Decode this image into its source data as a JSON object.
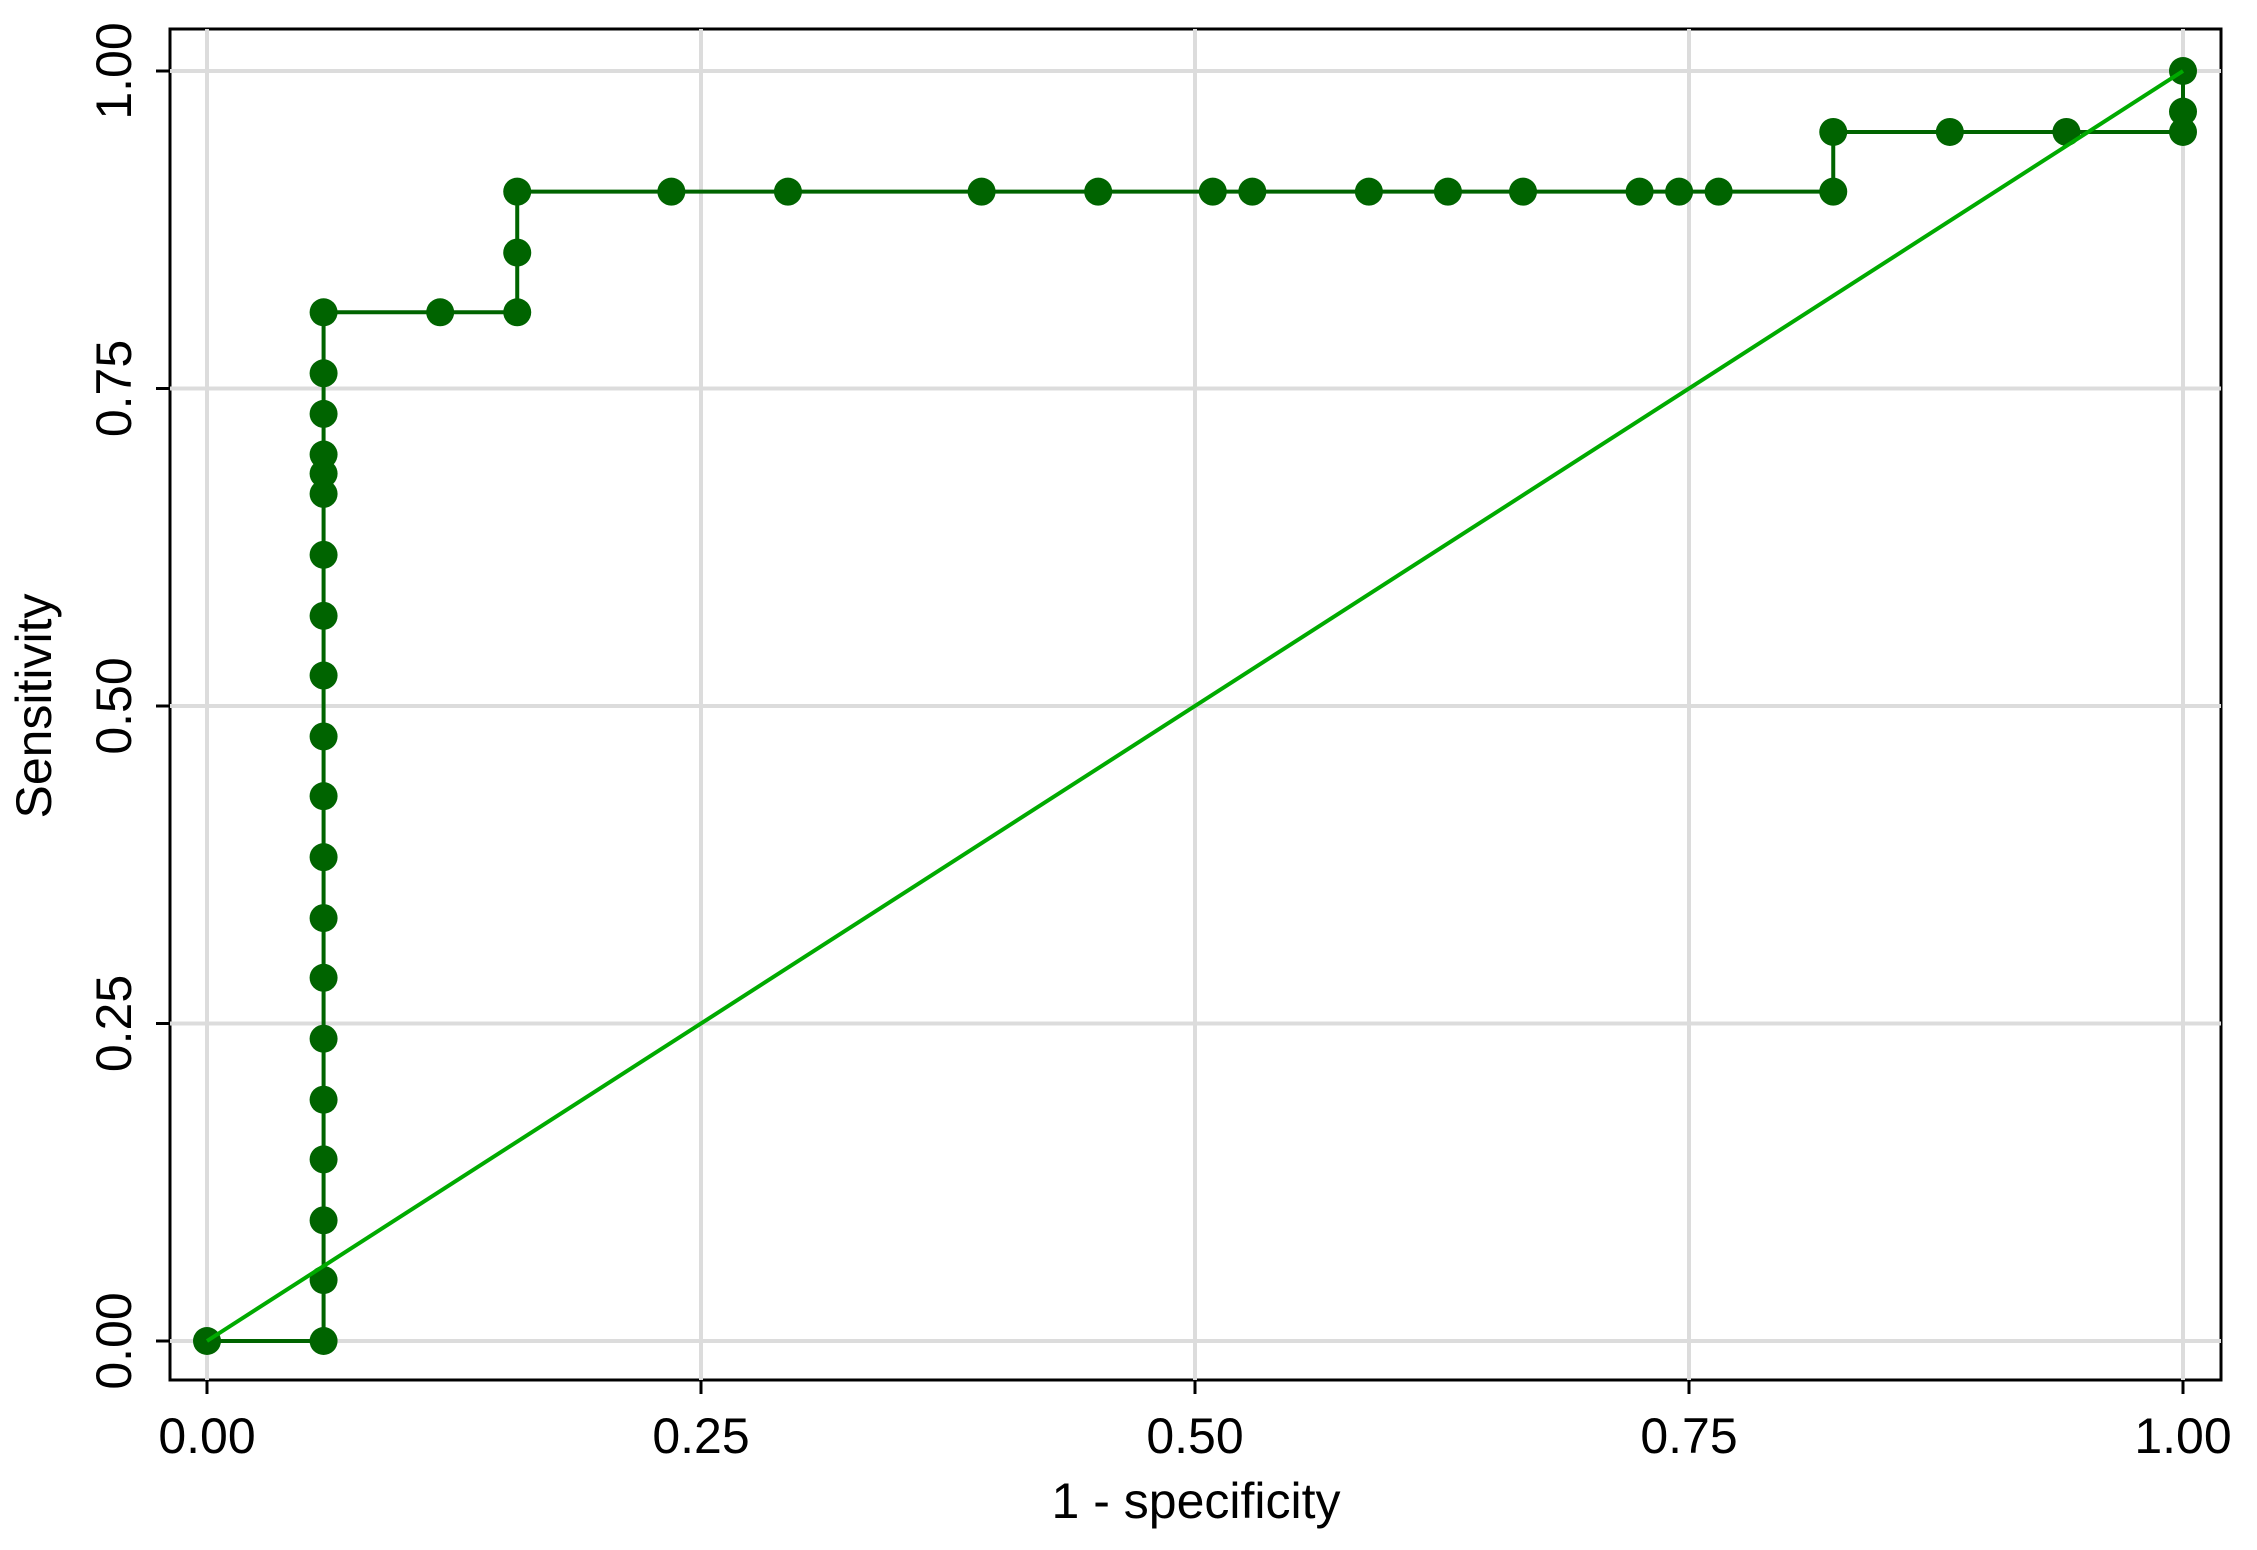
{
  "chart_data": {
    "type": "line",
    "xlabel": "1 - specificity",
    "ylabel": "Sensitivity",
    "xlim": [
      0,
      1
    ],
    "ylim": [
      0,
      1
    ],
    "xticks": [
      {
        "value": 0,
        "label": "0.00"
      },
      {
        "value": 0.25,
        "label": "0.25"
      },
      {
        "value": 0.5,
        "label": "0.50"
      },
      {
        "value": 0.75,
        "label": "0.75"
      },
      {
        "value": 1,
        "label": "1.00"
      }
    ],
    "yticks": [
      {
        "value": 0,
        "label": "0.00"
      },
      {
        "value": 0.25,
        "label": "0.25"
      },
      {
        "value": 0.5,
        "label": "0.50"
      },
      {
        "value": 0.75,
        "label": "0.75"
      },
      {
        "value": 1,
        "label": "1.00"
      }
    ],
    "grid": true,
    "series": [
      {
        "color": "#006400",
        "markers": true,
        "x": [
          0,
          0.059,
          0.059,
          0.059,
          0.059,
          0.059,
          0.059,
          0.059,
          0.059,
          0.059,
          0.059,
          0.059,
          0.059,
          0.059,
          0.059,
          0.059,
          0.059,
          0.059,
          0.059,
          0.059,
          0.059,
          0.118,
          0.157,
          0.157,
          0.157,
          0.235,
          0.294,
          0.392,
          0.451,
          0.509,
          0.529,
          0.588,
          0.628,
          0.666,
          0.725,
          0.745,
          0.765,
          0.823,
          0.823,
          0.882,
          0.941,
          1,
          1,
          1
        ],
        "values": [
          0,
          0,
          0.048,
          0.095,
          0.143,
          0.19,
          0.238,
          0.286,
          0.333,
          0.381,
          0.429,
          0.476,
          0.524,
          0.571,
          0.619,
          0.667,
          0.683,
          0.698,
          0.73,
          0.762,
          0.81,
          0.81,
          0.81,
          0.857,
          0.905,
          0.905,
          0.905,
          0.905,
          0.905,
          0.905,
          0.905,
          0.905,
          0.905,
          0.905,
          0.905,
          0.905,
          0.905,
          0.905,
          0.952,
          0.952,
          0.952,
          0.952,
          0.968,
          1
        ]
      },
      {
        "color": "#00aa00",
        "markers": false,
        "x": [
          0,
          1
        ],
        "values": [
          0,
          1
        ]
      }
    ]
  }
}
